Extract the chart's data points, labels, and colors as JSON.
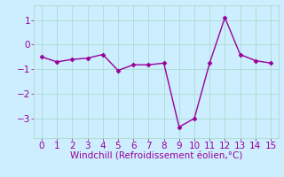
{
  "x": [
    0,
    1,
    2,
    3,
    4,
    5,
    6,
    7,
    8,
    9,
    10,
    11,
    12,
    13,
    14,
    15
  ],
  "y": [
    -0.5,
    -0.7,
    -0.6,
    -0.55,
    -0.4,
    -1.05,
    -0.82,
    -0.82,
    -0.75,
    -3.35,
    -3.0,
    -0.75,
    1.1,
    -0.4,
    -0.65,
    -0.75
  ],
  "line_color": "#990099",
  "marker": "D",
  "marker_size": 2.5,
  "xlabel": "Windchill (Refroidissement éolien,°C)",
  "xlabel_fontsize": 7.5,
  "background_color": "#cceeff",
  "grid_color": "#aaddcc",
  "xlim": [
    -0.5,
    15.5
  ],
  "ylim": [
    -3.8,
    1.6
  ],
  "xticks": [
    0,
    1,
    2,
    3,
    4,
    5,
    6,
    7,
    8,
    9,
    10,
    11,
    12,
    13,
    14,
    15
  ],
  "yticks": [
    -3,
    -2,
    -1,
    0,
    1
  ],
  "tick_fontsize": 7.5,
  "line_width": 1.0
}
